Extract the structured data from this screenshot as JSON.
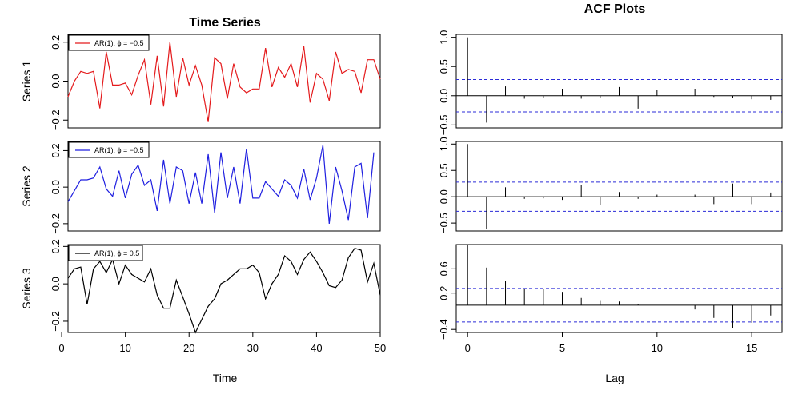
{
  "chart_data": [
    {
      "type": "line",
      "panel": "time-series-1",
      "title": "Time Series",
      "ylabel": "Series 1",
      "xlabel": "",
      "xlim": [
        1,
        50
      ],
      "ylim": [
        -0.24,
        0.24
      ],
      "xticks": [],
      "yticks": [
        -0.2,
        0.0,
        0.2
      ],
      "ytick_labels": [
        "−0.2",
        "0.0",
        "0.2"
      ],
      "legend": "AR(1), ϕ = −0.5",
      "legend_position": "top-left",
      "color": "#e41a1c",
      "x": [
        1,
        2,
        3,
        4,
        5,
        6,
        7,
        8,
        9,
        10,
        11,
        12,
        13,
        14,
        15,
        16,
        17,
        18,
        19,
        20,
        21,
        22,
        23,
        24,
        25,
        26,
        27,
        28,
        29,
        30,
        31,
        32,
        33,
        34,
        35,
        36,
        37,
        38,
        39,
        40,
        41,
        42,
        43,
        44,
        45,
        46,
        47,
        48,
        49,
        50
      ],
      "values": [
        -0.08,
        0.0,
        0.05,
        0.04,
        0.05,
        -0.14,
        0.15,
        -0.02,
        -0.02,
        -0.01,
        -0.07,
        0.03,
        0.11,
        -0.12,
        0.13,
        -0.13,
        0.2,
        -0.08,
        0.12,
        -0.02,
        0.08,
        -0.02,
        -0.21,
        0.12,
        0.09,
        -0.09,
        0.09,
        -0.03,
        -0.06,
        -0.04,
        -0.04,
        0.17,
        -0.03,
        0.07,
        0.02,
        0.09,
        -0.03,
        0.18,
        -0.11,
        0.04,
        0.01,
        -0.1,
        0.15,
        0.04,
        0.06,
        0.05,
        -0.06,
        0.11,
        0.11,
        0.01
      ]
    },
    {
      "type": "line",
      "panel": "time-series-2",
      "title": "",
      "ylabel": "Series 2",
      "xlabel": "",
      "xlim": [
        1,
        50
      ],
      "ylim": [
        -0.24,
        0.25
      ],
      "xticks": [],
      "yticks": [
        -0.2,
        0.0,
        0.2
      ],
      "ytick_labels": [
        "−0.2",
        "0.0",
        "0.2"
      ],
      "legend": "AR(1), ϕ = −0.5",
      "legend_position": "top-left",
      "color": "#1f1fe0",
      "x": [
        1,
        2,
        3,
        4,
        5,
        6,
        7,
        8,
        9,
        10,
        11,
        12,
        13,
        14,
        15,
        16,
        17,
        18,
        19,
        20,
        21,
        22,
        23,
        24,
        25,
        26,
        27,
        28,
        29,
        30,
        31,
        32,
        33,
        34,
        35,
        36,
        37,
        38,
        39,
        40,
        41,
        42,
        43,
        44,
        45,
        46,
        47,
        48,
        49,
        50
      ],
      "values": [
        -0.08,
        -0.02,
        0.04,
        0.04,
        0.05,
        0.11,
        -0.01,
        -0.05,
        0.09,
        -0.06,
        0.07,
        0.12,
        0.01,
        0.04,
        -0.13,
        0.15,
        -0.09,
        0.11,
        0.09,
        -0.09,
        0.08,
        -0.09,
        0.18,
        -0.14,
        0.19,
        -0.06,
        0.11,
        -0.09,
        0.21,
        -0.06,
        -0.06,
        0.03,
        -0.01,
        -0.05,
        0.04,
        0.01,
        -0.06,
        0.1,
        -0.07,
        0.05,
        0.23,
        -0.2,
        0.11,
        -0.02,
        -0.18,
        0.11,
        0.13,
        -0.17,
        0.19,
        null
      ]
    },
    {
      "type": "line",
      "panel": "time-series-3",
      "title": "",
      "ylabel": "Series 3",
      "xlabel": "Time",
      "xlim": [
        1,
        50
      ],
      "ylim": [
        -0.26,
        0.21
      ],
      "xticks": [
        0,
        10,
        20,
        30,
        40,
        50
      ],
      "yticks": [
        -0.2,
        0.0,
        0.2
      ],
      "ytick_labels": [
        "−0.2",
        "0.0",
        "0.2"
      ],
      "legend": "AR(1), ϕ = 0.5",
      "legend_position": "top-left",
      "color": "#000000",
      "x": [
        1,
        2,
        3,
        4,
        5,
        6,
        7,
        8,
        9,
        10,
        11,
        12,
        13,
        14,
        15,
        16,
        17,
        18,
        19,
        20,
        21,
        22,
        23,
        24,
        25,
        26,
        27,
        28,
        29,
        30,
        31,
        32,
        33,
        34,
        35,
        36,
        37,
        38,
        39,
        40,
        41,
        42,
        43,
        44,
        45,
        46,
        47,
        48,
        49,
        50
      ],
      "values": [
        0.03,
        0.08,
        0.09,
        -0.11,
        0.08,
        0.12,
        0.06,
        0.13,
        0.0,
        0.1,
        0.05,
        0.03,
        0.01,
        0.08,
        -0.06,
        -0.13,
        -0.13,
        0.02,
        -0.07,
        -0.16,
        -0.26,
        -0.19,
        -0.12,
        -0.08,
        0.0,
        0.02,
        0.05,
        0.08,
        0.08,
        0.1,
        0.06,
        -0.08,
        0.0,
        0.05,
        0.15,
        0.12,
        0.05,
        0.13,
        0.17,
        0.12,
        0.06,
        -0.01,
        -0.02,
        0.02,
        0.14,
        0.19,
        0.18,
        0.01,
        0.11,
        -0.06
      ]
    },
    {
      "type": "bar",
      "panel": "acf-1",
      "title": "ACF Plots",
      "ylabel": "",
      "xlabel": "",
      "xlim": [
        -0.6,
        16.6
      ],
      "ylim": [
        -0.55,
        1.05
      ],
      "xticks": [],
      "yticks": [
        -0.5,
        0.0,
        0.5,
        1.0
      ],
      "ytick_labels": [
        "−0.5",
        "0.0",
        "0.5",
        "1.0"
      ],
      "confidence_band": 0.277,
      "lags": [
        0,
        1,
        2,
        3,
        4,
        5,
        6,
        7,
        8,
        9,
        10,
        11,
        12,
        13,
        14,
        15,
        16
      ],
      "values": [
        1.0,
        -0.46,
        0.16,
        -0.05,
        -0.04,
        0.12,
        -0.05,
        -0.04,
        0.15,
        -0.22,
        0.1,
        -0.03,
        0.12,
        -0.02,
        -0.04,
        -0.06,
        -0.07
      ]
    },
    {
      "type": "bar",
      "panel": "acf-2",
      "title": "",
      "ylabel": "",
      "xlabel": "",
      "xlim": [
        -0.6,
        16.6
      ],
      "ylim": [
        -0.65,
        1.05
      ],
      "xticks": [],
      "yticks": [
        -0.5,
        0.0,
        0.5,
        1.0
      ],
      "ytick_labels": [
        "−0.5",
        "0.0",
        "0.5",
        "1.0"
      ],
      "confidence_band": 0.277,
      "lags": [
        0,
        1,
        2,
        3,
        4,
        5,
        6,
        7,
        8,
        9,
        10,
        11,
        12,
        13,
        14,
        15,
        16
      ],
      "values": [
        1.0,
        -0.62,
        0.18,
        -0.04,
        -0.03,
        -0.06,
        0.22,
        -0.15,
        0.09,
        -0.04,
        0.04,
        -0.02,
        0.04,
        -0.14,
        0.25,
        -0.14,
        0.08
      ]
    },
    {
      "type": "bar",
      "panel": "acf-3",
      "title": "",
      "ylabel": "",
      "xlabel": "Lag",
      "xlim": [
        -0.6,
        16.6
      ],
      "ylim": [
        -0.45,
        1.0
      ],
      "xticks": [
        0,
        5,
        10,
        15
      ],
      "yticks": [
        -0.4,
        0.2,
        0.6
      ],
      "ytick_labels": [
        "−0.4",
        "0.2",
        "0.6"
      ],
      "confidence_band": 0.277,
      "lags": [
        0,
        1,
        2,
        3,
        4,
        5,
        6,
        7,
        8,
        9,
        10,
        11,
        12,
        13,
        14,
        15,
        16
      ],
      "values": [
        1.0,
        0.62,
        0.4,
        0.27,
        0.27,
        0.22,
        0.12,
        0.07,
        0.06,
        0.02,
        0.0,
        0.0,
        -0.07,
        -0.21,
        -0.38,
        -0.29,
        -0.17
      ]
    }
  ]
}
